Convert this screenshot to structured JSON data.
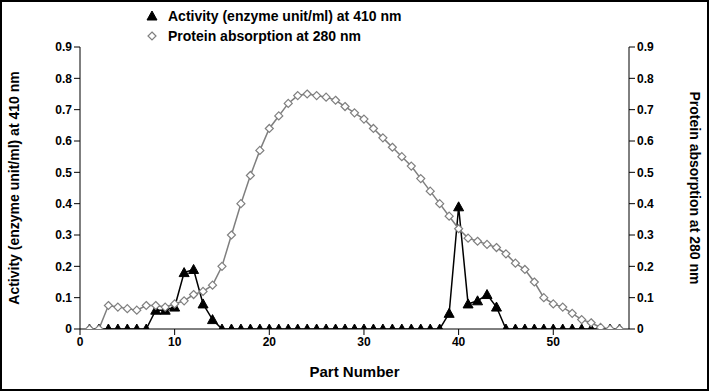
{
  "chart_data": {
    "type": "line",
    "x_label": "Part Number",
    "y_label": "Activity (enzyme unit/ml) at 410 nm",
    "y2_label": "Protein absorption at 280 nm",
    "x": [
      1,
      2,
      3,
      4,
      5,
      6,
      7,
      8,
      9,
      10,
      11,
      12,
      13,
      14,
      15,
      16,
      17,
      18,
      19,
      20,
      21,
      22,
      23,
      24,
      25,
      26,
      27,
      28,
      29,
      30,
      31,
      32,
      33,
      34,
      35,
      36,
      37,
      38,
      39,
      40,
      41,
      42,
      43,
      44,
      45,
      46,
      47,
      48,
      49,
      50,
      51,
      52,
      53,
      54,
      55,
      56,
      57
    ],
    "xlim": [
      0,
      58
    ],
    "xticks": [
      0,
      10,
      20,
      30,
      40,
      50
    ],
    "ylim": [
      0,
      0.9
    ],
    "yticks": [
      0,
      0.1,
      0.2,
      0.3,
      0.4,
      0.5,
      0.6,
      0.7,
      0.8,
      0.9
    ],
    "y2lim": [
      0,
      0.9
    ],
    "y2ticks": [
      0,
      0.1,
      0.2,
      0.3,
      0.4,
      0.5,
      0.6,
      0.7,
      0.8,
      0.9
    ],
    "legend": "top left",
    "series": [
      {
        "name": "Activity (enzyme unit/ml) at 410 nm",
        "color": "#000000",
        "marker": "triangle",
        "values": [
          0,
          0,
          0,
          0,
          0,
          0,
          0,
          0.06,
          0.06,
          0.07,
          0.18,
          0.19,
          0.08,
          0.03,
          0,
          0,
          0,
          0,
          0,
          0,
          0,
          0,
          0,
          0,
          0,
          0,
          0,
          0,
          0,
          0,
          0,
          0,
          0,
          0,
          0,
          0,
          0,
          0,
          0.05,
          0.39,
          0.08,
          0.09,
          0.11,
          0.07,
          0,
          0,
          0,
          0,
          0,
          0,
          0,
          0,
          0,
          0,
          0,
          0,
          0
        ]
      },
      {
        "name": "Protein absorption at 280 nm",
        "color": "#7f7f7f",
        "marker": "diamond",
        "axis": "y2",
        "values": [
          0,
          0,
          0.075,
          0.07,
          0.065,
          0.06,
          0.075,
          0.075,
          0.07,
          0.08,
          0.09,
          0.11,
          0.12,
          0.14,
          0.2,
          0.3,
          0.4,
          0.49,
          0.57,
          0.64,
          0.68,
          0.72,
          0.745,
          0.75,
          0.745,
          0.74,
          0.73,
          0.71,
          0.69,
          0.67,
          0.64,
          0.61,
          0.58,
          0.55,
          0.52,
          0.48,
          0.44,
          0.4,
          0.36,
          0.32,
          0.29,
          0.28,
          0.27,
          0.26,
          0.24,
          0.21,
          0.19,
          0.15,
          0.1,
          0.08,
          0.07,
          0.05,
          0.03,
          0.02,
          0.005,
          0,
          0
        ]
      }
    ]
  }
}
